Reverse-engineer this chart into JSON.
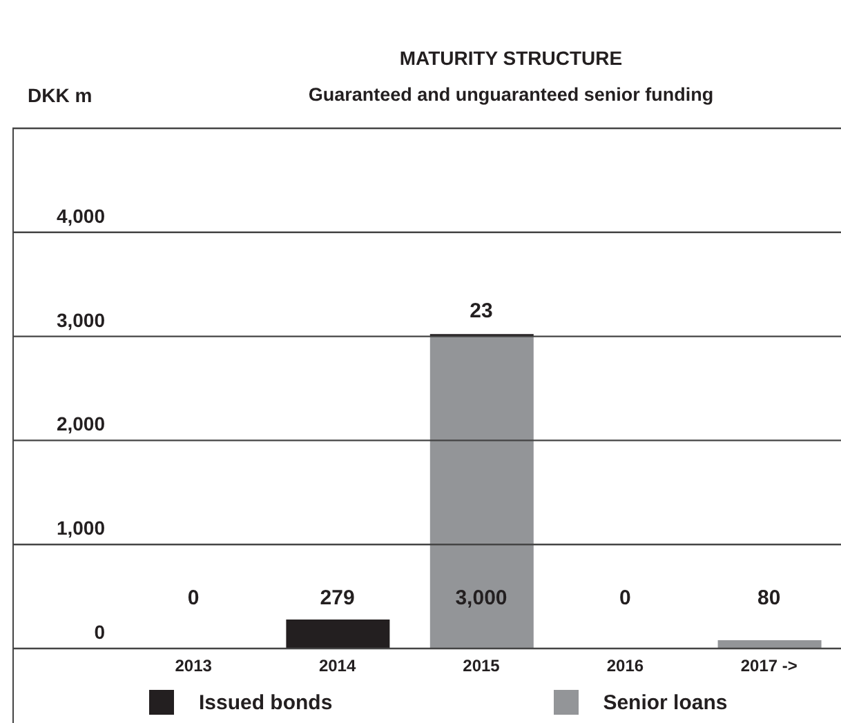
{
  "chart_data": {
    "type": "bar",
    "title": "MATURITY STRUCTURE",
    "subtitle": "Guaranteed and unguaranteed senior funding",
    "ylabel": "DKK m",
    "categories": [
      "2013",
      "2014",
      "2015",
      "2016",
      "2017 ->"
    ],
    "series": [
      {
        "name": "Senior loans",
        "color": "#939598",
        "values": [
          0,
          0,
          3000,
          0,
          80
        ],
        "value_labels": [
          null,
          null,
          "3,000",
          null,
          "80"
        ]
      },
      {
        "name": "Issued bonds",
        "color": "#231f20",
        "values": [
          0,
          279,
          23,
          0,
          0
        ],
        "value_labels": [
          "0",
          "279",
          "23",
          "0",
          null
        ]
      }
    ],
    "stacked": true,
    "ylim": [
      0,
      5000
    ],
    "yticks": [
      0,
      {
        "value": 1000,
        "label": "1,000"
      },
      {
        "value": 2000,
        "label": "2,000"
      },
      {
        "value": 3000,
        "label": "3,000"
      },
      {
        "value": 4000,
        "label": "4,000"
      },
      {
        "value": 5000,
        "label": null
      }
    ],
    "grid": "y",
    "legend": "bottom"
  }
}
